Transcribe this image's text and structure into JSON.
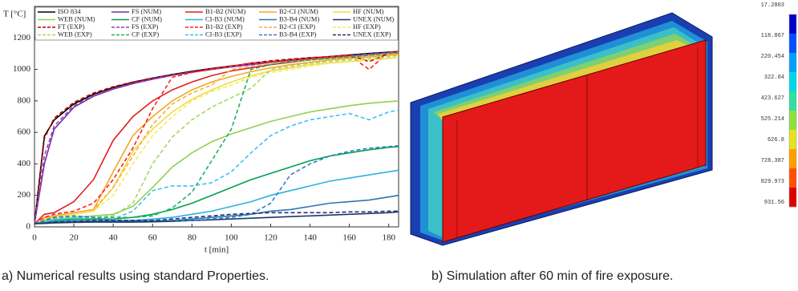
{
  "chart_data": [
    {
      "type": "line",
      "y_label": "T [°C]",
      "x_label": "t [min]",
      "xlim": [
        0,
        185
      ],
      "ylim": [
        0,
        1400
      ],
      "xticks": [
        0,
        20,
        40,
        60,
        80,
        100,
        120,
        140,
        160,
        180
      ],
      "yticks": [
        0,
        200,
        400,
        600,
        800,
        1000,
        1200
      ],
      "x": [
        0,
        5,
        10,
        20,
        30,
        40,
        50,
        60,
        70,
        80,
        90,
        100,
        110,
        120,
        130,
        140,
        150,
        160,
        170,
        180,
        185
      ],
      "series": [
        {
          "name": "ISO 834",
          "color": "#000000",
          "dashed": false,
          "values": [
            20,
            576,
            678,
            781,
            842,
            885,
            918,
            945,
            968,
            988,
            1006,
            1022,
            1036,
            1049,
            1061,
            1072,
            1082,
            1092,
            1101,
            1110,
            1114
          ]
        },
        {
          "name": "FS (NUM)",
          "color": "#7030a0",
          "dashed": false,
          "values": [
            20,
            400,
            620,
            760,
            830,
            875,
            910,
            938,
            962,
            982,
            1000,
            1016,
            1030,
            1043,
            1055,
            1066,
            1076,
            1086,
            1095,
            1104,
            1108
          ]
        },
        {
          "name": "B1-B2 (NUM)",
          "color": "#e02020",
          "dashed": false,
          "values": [
            20,
            80,
            90,
            160,
            300,
            550,
            700,
            800,
            870,
            920,
            960,
            990,
            1010,
            1030,
            1045,
            1060,
            1070,
            1080,
            1090,
            1100,
            1105
          ]
        },
        {
          "name": "B2-CI (NUM)",
          "color": "#f5a623",
          "dashed": false,
          "values": [
            20,
            60,
            70,
            90,
            110,
            350,
            580,
            700,
            800,
            870,
            920,
            955,
            985,
            1010,
            1030,
            1045,
            1060,
            1070,
            1080,
            1090,
            1095
          ]
        },
        {
          "name": "HF (NUM)",
          "color": "#f0dc40",
          "dashed": false,
          "values": [
            20,
            50,
            60,
            80,
            100,
            250,
            480,
            620,
            730,
            810,
            870,
            920,
            960,
            990,
            1010,
            1030,
            1040,
            1050,
            1060,
            1070,
            1075
          ]
        },
        {
          "name": "WEB (NUM)",
          "color": "#92d050",
          "dashed": false,
          "values": [
            20,
            40,
            50,
            60,
            70,
            80,
            130,
            250,
            380,
            470,
            540,
            590,
            630,
            670,
            700,
            730,
            750,
            770,
            785,
            795,
            800
          ]
        },
        {
          "name": "CF (NUM)",
          "color": "#00a050",
          "dashed": false,
          "values": [
            20,
            30,
            40,
            50,
            50,
            50,
            60,
            80,
            110,
            150,
            200,
            250,
            300,
            340,
            380,
            420,
            450,
            470,
            490,
            505,
            510
          ]
        },
        {
          "name": "CI-B3 (NUM)",
          "color": "#30b0e0",
          "dashed": false,
          "values": [
            20,
            30,
            35,
            40,
            40,
            40,
            40,
            50,
            60,
            80,
            100,
            130,
            160,
            200,
            230,
            260,
            290,
            310,
            330,
            350,
            360
          ]
        },
        {
          "name": "B3-B4 (NUM)",
          "color": "#2e75b6",
          "dashed": false,
          "values": [
            20,
            25,
            30,
            35,
            35,
            35,
            35,
            35,
            40,
            50,
            60,
            70,
            80,
            100,
            110,
            130,
            150,
            160,
            170,
            190,
            200
          ]
        },
        {
          "name": "UNEX (NUM)",
          "color": "#1f3864",
          "dashed": false,
          "values": [
            20,
            22,
            25,
            28,
            30,
            30,
            30,
            32,
            35,
            40,
            45,
            50,
            55,
            60,
            65,
            70,
            75,
            80,
            85,
            90,
            95
          ]
        },
        {
          "name": "FT (EXP)",
          "color": "#c00000",
          "dashed": true,
          "values": [
            20,
            560,
            690,
            790,
            850,
            890,
            920,
            945,
            965,
            985,
            1005,
            1020,
            1040,
            1055,
            1065,
            1075,
            1080,
            1090,
            1050,
            1100,
            1110
          ]
        },
        {
          "name": "FS (EXP)",
          "color": "#9040c0",
          "dashed": true,
          "values": [
            20,
            450,
            640,
            770,
            835,
            878,
            912,
            940,
            963,
            983,
            1002,
            1018,
            1032,
            1045,
            1057,
            1068,
            1078,
            1088,
            1097,
            1106,
            1110
          ]
        },
        {
          "name": "B1-B2 (EXP)",
          "color": "#ff2020",
          "dashed": true,
          "values": [
            20,
            60,
            80,
            100,
            150,
            300,
            500,
            750,
            950,
            980,
            1000,
            1020,
            1040,
            1050,
            1060,
            1070,
            1080,
            1090,
            1000,
            1110,
            1115
          ]
        },
        {
          "name": "B2-CI (EXP)",
          "color": "#f5b040",
          "dashed": true,
          "values": [
            20,
            50,
            70,
            90,
            110,
            250,
            450,
            650,
            780,
            850,
            900,
            1000,
            1020,
            1040,
            1050,
            1060,
            1070,
            1080,
            1090,
            1100,
            1100
          ]
        },
        {
          "name": "HF (EXP)",
          "color": "#f8e860",
          "dashed": true,
          "values": [
            20,
            40,
            60,
            80,
            100,
            200,
            400,
            580,
            700,
            800,
            860,
            900,
            950,
            980,
            1000,
            1020,
            1040,
            1050,
            1060,
            1070,
            1080
          ]
        },
        {
          "name": "WEB (EXP)",
          "color": "#a0d860",
          "dashed": true,
          "values": [
            20,
            40,
            50,
            60,
            60,
            70,
            150,
            400,
            570,
            680,
            760,
            820,
            880,
            1000,
            1020,
            1040,
            1050,
            1060,
            1070,
            1080,
            1090
          ]
        },
        {
          "name": "CF (EXP)",
          "color": "#20b060",
          "dashed": true,
          "values": [
            20,
            40,
            60,
            70,
            60,
            60,
            60,
            70,
            120,
            220,
            420,
            620,
            1000,
            1030,
            1050,
            1060,
            1070,
            1080,
            1090,
            1100,
            1110
          ]
        },
        {
          "name": "CI-B3 (EXP)",
          "color": "#40c0f0",
          "dashed": true,
          "values": [
            20,
            40,
            50,
            60,
            60,
            50,
            100,
            230,
            260,
            260,
            280,
            350,
            470,
            580,
            640,
            680,
            700,
            720,
            680,
            730,
            740
          ]
        },
        {
          "name": "B3-B4 (EXP)",
          "color": "#3080c8",
          "dashed": true,
          "values": [
            20,
            40,
            60,
            70,
            60,
            40,
            40,
            40,
            40,
            40,
            50,
            60,
            80,
            150,
            330,
            400,
            450,
            480,
            500,
            510,
            515
          ]
        },
        {
          "name": "UNEX (EXP)",
          "color": "#203070",
          "dashed": true,
          "values": [
            20,
            25,
            30,
            35,
            40,
            40,
            40,
            40,
            50,
            60,
            70,
            80,
            85,
            90,
            90,
            90,
            90,
            95,
            95,
            100,
            100
          ]
        }
      ]
    },
    {
      "type": "colorbar",
      "ticks": [
        17.2803,
        118.867,
        220.454,
        322.04,
        423.627,
        525.214,
        626.8,
        728.387,
        829.973,
        931.56
      ],
      "colors": [
        "#0000c8",
        "#0050ff",
        "#00a0ff",
        "#00d8e8",
        "#30e0a0",
        "#90e040",
        "#e8e020",
        "#ffa000",
        "#ff5000",
        "#e00000"
      ]
    }
  ],
  "captions": [
    "a) Numerical results using standard Properties.",
    "b) Simulation after 60 min of fire exposure."
  ]
}
